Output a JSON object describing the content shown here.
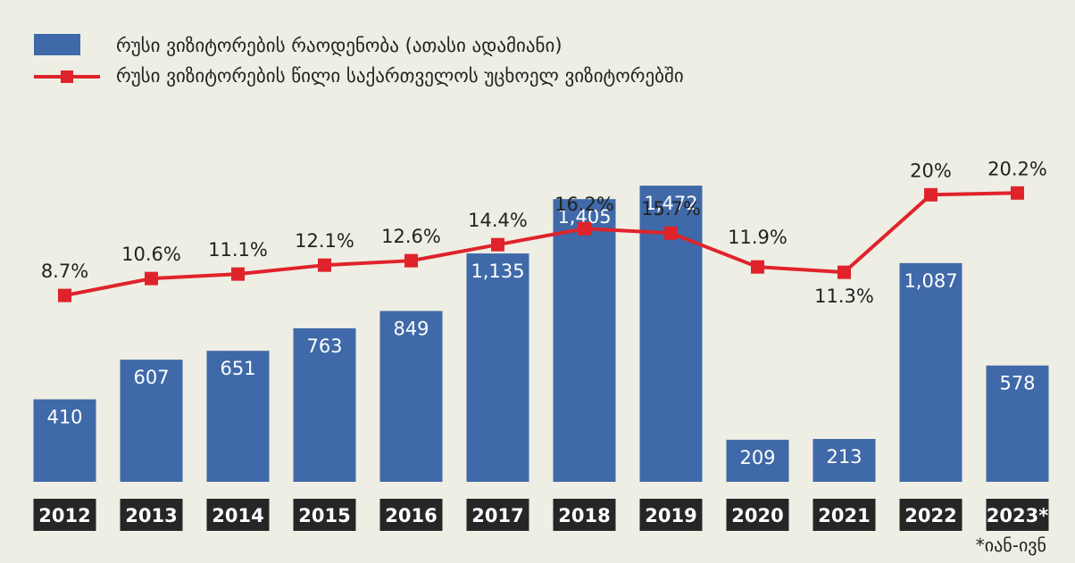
{
  "legend": {
    "bar_series": "რუსი ვიზიტორების რაოდენობა (ათასი ადამიანი)",
    "line_series": "რუსი ვიზიტორების წილი საქართველოს უცხოელ ვიზიტორებში"
  },
  "footnote": "*იან-ივნ",
  "colors": {
    "background": "#eeeee4",
    "bar": "#3f69a8",
    "line": "#e0232b",
    "year_box": "#262626"
  },
  "chart_data": {
    "type": "bar",
    "categories": [
      "2012",
      "2013",
      "2014",
      "2015",
      "2016",
      "2017",
      "2018",
      "2019",
      "2020",
      "2021",
      "2022",
      "2023*"
    ],
    "series": [
      {
        "name": "რუსი ვიზიტორების რაოდენობა (ათასი ადამიანი)",
        "type": "bar",
        "values": [
          410,
          607,
          651,
          763,
          849,
          1135,
          1405,
          1472,
          209,
          213,
          1087,
          578
        ],
        "labels": [
          "410",
          "607",
          "651",
          "763",
          "849",
          "1,135",
          "1,405",
          "1,472",
          "209",
          "213",
          "1,087",
          "578"
        ]
      },
      {
        "name": "რუსი ვიზიტორების წილი საქართველოს უცხოელ ვიზიტორებში",
        "type": "line",
        "values": [
          8.7,
          10.6,
          11.1,
          12.1,
          12.6,
          14.4,
          16.2,
          15.7,
          11.9,
          11.3,
          20,
          20.2
        ],
        "labels": [
          "8.7%",
          "10.6%",
          "11.1%",
          "12.1%",
          "12.6%",
          "14.4%",
          "16.2%",
          "15.7%",
          "11.9%",
          "11.3%",
          "20%",
          "20.2%"
        ]
      }
    ],
    "grid": false,
    "legend_position": "top-left"
  }
}
